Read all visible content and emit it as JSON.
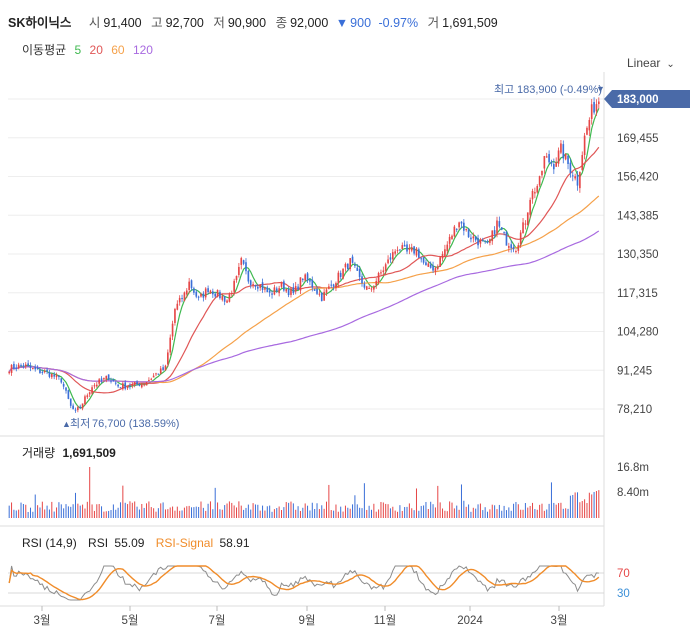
{
  "header": {
    "name": "SK하이닉스",
    "open_label": "시",
    "open": "91,400",
    "high_label": "고",
    "high": "92,700",
    "low_label": "저",
    "low": "90,900",
    "close_label": "종",
    "close": "92,000",
    "change_arrow": "▼",
    "change": "900",
    "change_pct": "-0.97%",
    "volume_label": "거",
    "volume": "1,691,509"
  },
  "moving_avg": {
    "label": "이동평균",
    "p5": "5",
    "p20": "20",
    "p60": "60",
    "p120": "120"
  },
  "scale_mode": "Linear",
  "colors": {
    "up": "#e64646",
    "down": "#3a6fd8",
    "ma5": "#3fb950",
    "ma20": "#e05757",
    "ma60": "#f5a14a",
    "ma120": "#a86ae0",
    "rsi": "#8c8c8c",
    "signal": "#f08c2a",
    "current_tag": "#4a6aa8"
  },
  "chart_data": {
    "type": "candlestick",
    "price_axis": {
      "ticks": [
        "183,000",
        "169,455",
        "156,420",
        "143,385",
        "130,350",
        "117,315",
        "104,280",
        "91,245",
        "78,210"
      ],
      "range": [
        74000,
        190000
      ]
    },
    "current_price_tag": "183,000",
    "high_annotation": {
      "label": "최고",
      "value": "183,900 (-0.49%)",
      "marker": "▼"
    },
    "low_annotation": {
      "label": "최저",
      "value": "76,700 (138.59%)",
      "marker": "▲"
    },
    "x_ticks": [
      "3월",
      "5월",
      "7월",
      "9월",
      "11월",
      "2024",
      "3월"
    ],
    "price_path": [
      [
        0,
        92
      ],
      [
        6,
        93
      ],
      [
        12,
        91
      ],
      [
        16,
        90.5
      ],
      [
        22,
        88
      ],
      [
        26,
        79
      ],
      [
        28,
        77
      ],
      [
        30,
        79
      ],
      [
        35,
        86
      ],
      [
        42,
        89
      ],
      [
        46,
        86
      ],
      [
        50,
        86
      ],
      [
        57,
        87
      ],
      [
        62,
        90
      ],
      [
        66,
        92
      ],
      [
        70,
        112
      ],
      [
        74,
        117
      ],
      [
        76,
        121
      ],
      [
        80,
        115
      ],
      [
        84,
        119
      ],
      [
        88,
        117
      ],
      [
        92,
        115
      ],
      [
        96,
        122
      ],
      [
        98,
        128
      ],
      [
        101,
        122
      ],
      [
        106,
        120
      ],
      [
        110,
        117
      ],
      [
        115,
        120
      ],
      [
        120,
        117
      ],
      [
        124,
        123
      ],
      [
        128,
        120
      ],
      [
        132,
        116
      ],
      [
        136,
        120
      ],
      [
        140,
        124
      ],
      [
        144,
        128
      ],
      [
        148,
        122
      ],
      [
        152,
        118
      ],
      [
        156,
        123
      ],
      [
        160,
        128
      ],
      [
        164,
        133
      ],
      [
        168,
        131
      ],
      [
        172,
        132
      ],
      [
        176,
        126
      ],
      [
        180,
        126
      ],
      [
        184,
        132
      ],
      [
        188,
        139
      ],
      [
        190,
        142
      ],
      [
        194,
        137
      ],
      [
        198,
        135
      ],
      [
        202,
        133
      ],
      [
        206,
        141
      ],
      [
        210,
        135
      ],
      [
        214,
        133
      ],
      [
        218,
        142
      ],
      [
        220,
        150
      ],
      [
        224,
        155
      ],
      [
        226,
        163
      ],
      [
        230,
        161
      ],
      [
        233,
        166
      ],
      [
        236,
        161
      ],
      [
        240,
        155
      ],
      [
        243,
        170
      ],
      [
        246,
        179
      ],
      [
        249,
        183
      ]
    ],
    "volume_panel": {
      "label": "거래량",
      "value": "1,691,509",
      "ticks": [
        "16.8m",
        "8.40m"
      ]
    },
    "rsi_panel": {
      "label": "RSI (14,9)",
      "rsi_label": "RSI",
      "rsi": "55.09",
      "signal_label": "RSI-Signal",
      "signal": "58.91",
      "levels": [
        "70",
        "30"
      ]
    }
  }
}
